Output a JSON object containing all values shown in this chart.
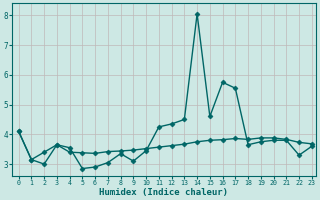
{
  "xlabel": "Humidex (Indice chaleur)",
  "background_color": "#cde8e4",
  "grid_color": "#c0b8b8",
  "line_color": "#006666",
  "xlim": [
    -0.5,
    23.3
  ],
  "ylim": [
    2.6,
    8.4
  ],
  "yticks": [
    3,
    4,
    5,
    6,
    7,
    8
  ],
  "xticks": [
    0,
    1,
    2,
    3,
    4,
    5,
    6,
    7,
    8,
    9,
    10,
    11,
    12,
    13,
    14,
    15,
    16,
    17,
    18,
    19,
    20,
    21,
    22,
    23
  ],
  "series1_x": [
    0,
    1,
    2,
    3,
    4,
    5,
    6,
    7,
    8,
    9,
    10,
    11,
    12,
    13,
    14,
    15,
    16,
    17,
    18,
    19,
    20,
    21,
    22,
    23
  ],
  "series1_y": [
    4.1,
    3.15,
    3.0,
    3.65,
    3.55,
    2.85,
    2.9,
    3.05,
    3.35,
    3.1,
    3.45,
    4.25,
    4.35,
    4.5,
    8.05,
    4.6,
    5.75,
    5.55,
    3.65,
    3.75,
    3.8,
    3.8,
    3.3,
    3.6
  ],
  "series2_x": [
    0,
    1,
    2,
    3,
    4,
    5,
    6,
    7,
    8,
    9,
    10,
    11,
    12,
    13,
    14,
    15,
    16,
    17,
    18,
    19,
    20,
    21,
    22,
    23
  ],
  "series2_y": [
    4.1,
    3.15,
    3.4,
    3.65,
    3.4,
    3.38,
    3.36,
    3.42,
    3.44,
    3.47,
    3.52,
    3.57,
    3.62,
    3.67,
    3.75,
    3.8,
    3.82,
    3.86,
    3.83,
    3.88,
    3.88,
    3.83,
    3.73,
    3.68
  ],
  "marker": "D",
  "markersize": 2.5,
  "linewidth": 1.0
}
